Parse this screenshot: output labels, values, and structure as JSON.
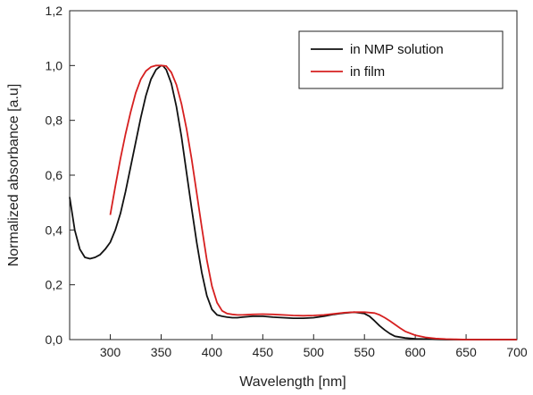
{
  "chart_data": {
    "type": "line",
    "title": "",
    "xlabel": "Wavelength [nm]",
    "ylabel": "Normalized absorbance [a.u]",
    "xlim": [
      260,
      700
    ],
    "ylim": [
      0.0,
      1.2
    ],
    "x_ticks": [
      300,
      350,
      400,
      450,
      500,
      550,
      600,
      650,
      700
    ],
    "y_ticks": [
      0.0,
      0.2,
      0.4,
      0.6,
      0.8,
      1.0,
      1.2
    ],
    "x_tick_labels": [
      "300",
      "350",
      "400",
      "450",
      "500",
      "550",
      "600",
      "650",
      "700"
    ],
    "y_tick_labels": [
      "0,0",
      "0,2",
      "0,4",
      "0,6",
      "0,8",
      "1,0",
      "1,2"
    ],
    "grid": false,
    "legend_position": "top-right",
    "series": [
      {
        "name": "in NMP solution",
        "color": "#111111",
        "x": [
          260,
          265,
          270,
          275,
          280,
          285,
          290,
          295,
          300,
          305,
          310,
          315,
          320,
          325,
          330,
          335,
          340,
          345,
          350,
          352,
          355,
          360,
          365,
          370,
          375,
          380,
          385,
          390,
          395,
          400,
          405,
          410,
          415,
          420,
          425,
          430,
          440,
          450,
          460,
          470,
          480,
          490,
          500,
          510,
          520,
          530,
          540,
          550,
          555,
          560,
          565,
          570,
          575,
          580,
          590,
          600,
          610,
          620,
          630,
          640,
          650,
          700
        ],
        "y": [
          0.52,
          0.4,
          0.33,
          0.3,
          0.295,
          0.3,
          0.31,
          0.33,
          0.355,
          0.4,
          0.46,
          0.54,
          0.63,
          0.72,
          0.81,
          0.89,
          0.95,
          0.985,
          1.0,
          0.998,
          0.985,
          0.935,
          0.85,
          0.74,
          0.61,
          0.48,
          0.355,
          0.245,
          0.16,
          0.11,
          0.09,
          0.085,
          0.082,
          0.08,
          0.08,
          0.082,
          0.085,
          0.085,
          0.082,
          0.08,
          0.078,
          0.078,
          0.08,
          0.085,
          0.092,
          0.097,
          0.1,
          0.095,
          0.085,
          0.068,
          0.05,
          0.035,
          0.022,
          0.012,
          0.006,
          0.003,
          0.002,
          0.001,
          0.0,
          0.0,
          0.0,
          0.0
        ]
      },
      {
        "name": "in film",
        "color": "#d62020",
        "x": [
          300,
          305,
          310,
          315,
          320,
          325,
          330,
          335,
          340,
          345,
          350,
          355,
          360,
          365,
          370,
          375,
          380,
          385,
          390,
          395,
          400,
          405,
          410,
          415,
          420,
          425,
          430,
          440,
          450,
          460,
          470,
          480,
          490,
          500,
          510,
          520,
          530,
          540,
          550,
          560,
          565,
          570,
          575,
          580,
          585,
          590,
          600,
          610,
          620,
          630,
          640,
          650,
          700
        ],
        "y": [
          0.455,
          0.56,
          0.66,
          0.75,
          0.83,
          0.9,
          0.95,
          0.98,
          0.995,
          1.0,
          1.0,
          0.998,
          0.975,
          0.93,
          0.86,
          0.77,
          0.66,
          0.535,
          0.41,
          0.29,
          0.195,
          0.135,
          0.105,
          0.095,
          0.092,
          0.09,
          0.09,
          0.092,
          0.093,
          0.092,
          0.09,
          0.088,
          0.087,
          0.088,
          0.09,
          0.094,
          0.098,
          0.1,
          0.1,
          0.097,
          0.09,
          0.08,
          0.068,
          0.055,
          0.042,
          0.03,
          0.016,
          0.008,
          0.004,
          0.002,
          0.001,
          0.0,
          0.0
        ]
      }
    ]
  }
}
